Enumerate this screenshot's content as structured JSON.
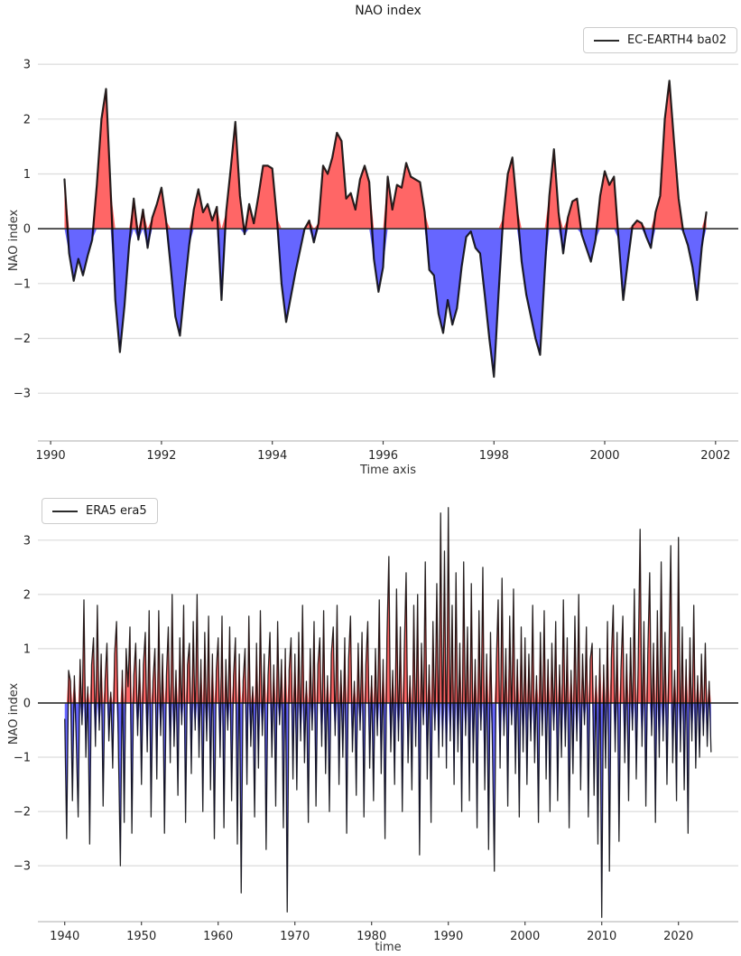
{
  "figure": {
    "background": "#ffffff",
    "grid_color": "#dcdcdc",
    "spine_color": "#c9c9c9",
    "tick_color": "#444444"
  },
  "chart_data": [
    {
      "type": "area",
      "title": "NAO index",
      "xlabel": "Time axis",
      "ylabel": "NAO index",
      "legend": {
        "label": "EC-EARTH4 ba02",
        "position": "top-right"
      },
      "grid": "horizontal",
      "xticks": [
        1990,
        1992,
        1994,
        1996,
        1998,
        2000,
        2002
      ],
      "yticks": [
        -3,
        -2,
        -1,
        0,
        1,
        2,
        3
      ],
      "xlim": [
        1989.77,
        2002.41
      ],
      "ylim": [
        -3.87,
        3.43
      ],
      "colors": {
        "positive_fill": "#ff6666",
        "negative_fill": "#6666ff",
        "line": "#000000",
        "line_opacity": 0.84,
        "zero_line": "#3d3d3d",
        "grid": "#dcdcdc"
      },
      "line_width": 2.2,
      "x_start": 1990.25,
      "x_step": 0.083333,
      "values": [
        0.9,
        -0.45,
        -0.95,
        -0.55,
        -0.85,
        -0.5,
        -0.2,
        0.8,
        2.0,
        2.55,
        0.7,
        -1.3,
        -2.25,
        -1.4,
        -0.3,
        0.55,
        -0.2,
        0.35,
        -0.35,
        0.2,
        0.45,
        0.75,
        0.15,
        -0.7,
        -1.6,
        -1.95,
        -1.1,
        -0.3,
        0.35,
        0.72,
        0.3,
        0.45,
        0.15,
        0.4,
        -1.3,
        0.3,
        1.1,
        1.95,
        0.6,
        -0.1,
        0.45,
        0.1,
        0.6,
        1.15,
        1.15,
        1.1,
        0.2,
        -1.0,
        -1.7,
        -1.25,
        -0.8,
        -0.4,
        0.0,
        0.15,
        -0.25,
        0.1,
        1.15,
        1.0,
        1.3,
        1.75,
        1.6,
        0.55,
        0.65,
        0.35,
        0.9,
        1.15,
        0.85,
        -0.55,
        -1.15,
        -0.7,
        0.95,
        0.35,
        0.8,
        0.75,
        1.2,
        0.95,
        0.9,
        0.85,
        0.3,
        -0.75,
        -0.85,
        -1.55,
        -1.9,
        -1.3,
        -1.75,
        -1.45,
        -0.7,
        -0.15,
        -0.05,
        -0.35,
        -0.45,
        -1.2,
        -2.0,
        -2.7,
        -1.2,
        0.2,
        1.0,
        1.3,
        0.4,
        -0.6,
        -1.2,
        -1.6,
        -2.0,
        -2.3,
        -0.8,
        0.6,
        1.45,
        0.3,
        -0.45,
        0.2,
        0.5,
        0.55,
        -0.1,
        -0.35,
        -0.6,
        -0.2,
        0.6,
        1.05,
        0.8,
        0.95,
        -0.2,
        -1.3,
        -0.6,
        0.05,
        0.15,
        0.1,
        -0.15,
        -0.35,
        0.3,
        0.6,
        2.0,
        2.7,
        1.6,
        0.55,
        -0.05,
        -0.3,
        -0.7,
        -1.3,
        -0.35,
        0.3
      ]
    },
    {
      "type": "area",
      "title": "",
      "xlabel": "time",
      "ylabel": "NAO index",
      "legend": {
        "label": "ERA5 era5",
        "position": "top-left"
      },
      "grid": "horizontal",
      "xticks": [
        1940,
        1950,
        1960,
        1970,
        1980,
        1990,
        2000,
        2010,
        2020
      ],
      "yticks": [
        -3,
        -2,
        -1,
        0,
        1,
        2,
        3
      ],
      "xlim": [
        1936.5,
        2027.8
      ],
      "ylim": [
        -4.03,
        3.63
      ],
      "colors": {
        "positive_fill": "#ff6666",
        "negative_fill": "#6666ff",
        "line": "#000000",
        "line_opacity": 0.84,
        "zero_line": "#3d3d3d",
        "grid": "#dcdcdc"
      },
      "line_width": 1.3,
      "x_start": 1940.0,
      "x_step": 0.25,
      "values": [
        -0.3,
        -2.5,
        0.6,
        0.4,
        -1.8,
        0.5,
        -0.7,
        -2.1,
        0.8,
        -0.4,
        1.9,
        -1.0,
        0.3,
        -2.6,
        0.7,
        1.2,
        -0.8,
        1.8,
        -0.5,
        0.9,
        -1.9,
        0.4,
        1.1,
        -0.7,
        0.2,
        -1.2,
        0.9,
        1.5,
        -0.9,
        -3.0,
        0.6,
        -2.2,
        1.0,
        0.3,
        1.4,
        -2.4,
        0.5,
        1.1,
        -0.6,
        0.8,
        -1.5,
        0.7,
        1.3,
        -0.9,
        1.7,
        -2.1,
        0.4,
        1.0,
        -1.4,
        1.7,
        -0.6,
        0.9,
        -2.4,
        0.5,
        1.4,
        -1.1,
        2.0,
        -0.8,
        0.6,
        -1.7,
        1.2,
        -0.4,
        1.8,
        -2.2,
        0.7,
        1.1,
        -1.3,
        1.5,
        -0.5,
        2.0,
        -1.0,
        0.8,
        -2.0,
        1.3,
        -0.7,
        1.6,
        -1.6,
        0.9,
        -2.5,
        0.6,
        1.2,
        -1.0,
        1.6,
        -2.3,
        0.8,
        -0.5,
        1.4,
        -1.8,
        0.5,
        1.2,
        -2.6,
        0.9,
        -3.5,
        0.4,
        1.0,
        -1.5,
        1.6,
        -0.8,
        0.3,
        -2.1,
        1.1,
        -1.2,
        1.7,
        -0.6,
        0.9,
        -2.7,
        0.5,
        1.3,
        -1.0,
        0.7,
        -1.9,
        1.5,
        -0.4,
        0.8,
        -2.3,
        1.0,
        -3.85,
        0.6,
        1.2,
        -1.4,
        0.9,
        -1.6,
        1.3,
        -0.7,
        1.8,
        -1.1,
        0.4,
        -2.2,
        1.0,
        -0.5,
        1.5,
        -1.9,
        0.7,
        1.2,
        -0.8,
        1.7,
        -1.3,
        0.5,
        -2.0,
        0.9,
        1.4,
        -0.6,
        1.8,
        -1.5,
        0.6,
        -1.0,
        1.2,
        -2.4,
        0.8,
        1.6,
        -0.9,
        0.4,
        -1.7,
        1.1,
        -0.5,
        1.3,
        -2.1,
        0.7,
        1.5,
        -1.2,
        0.5,
        -1.8,
        1.0,
        -0.6,
        1.9,
        -1.3,
        0.8,
        -2.5,
        1.2,
        2.7,
        -0.9,
        0.6,
        -1.5,
        2.1,
        -0.7,
        1.4,
        -2.0,
        0.9,
        2.4,
        -1.1,
        0.5,
        -1.6,
        1.8,
        -0.8,
        2.0,
        -2.8,
        1.1,
        -0.4,
        2.6,
        -1.4,
        0.7,
        -2.2,
        1.5,
        -0.5,
        2.2,
        -1.0,
        3.5,
        -0.8,
        2.8,
        -1.2,
        3.6,
        -0.7,
        1.8,
        -1.5,
        2.4,
        -0.9,
        1.1,
        -2.0,
        2.6,
        -0.6,
        1.4,
        -1.8,
        2.2,
        -1.1,
        0.8,
        -2.3,
        1.7,
        -0.5,
        2.5,
        -1.6,
        0.9,
        -2.7,
        1.3,
        -0.8,
        -3.1,
        0.7,
        1.9,
        -1.2,
        2.3,
        -0.6,
        1.0,
        -1.9,
        1.6,
        -0.4,
        2.1,
        -1.3,
        0.8,
        -2.1,
        1.4,
        -0.9,
        1.2,
        -1.5,
        0.9,
        -0.7,
        1.8,
        -1.1,
        0.5,
        -2.2,
        1.3,
        -0.6,
        1.7,
        -1.4,
        0.8,
        -2.0,
        1.1,
        -0.5,
        1.5,
        -1.8,
        0.7,
        -1.0,
        1.9,
        -0.8,
        1.2,
        -2.3,
        0.6,
        -1.3,
        1.6,
        -0.7,
        2.0,
        -1.6,
        0.9,
        -0.4,
        1.4,
        -2.1,
        0.8,
        1.1,
        -1.7,
        0.5,
        -2.6,
        1.0,
        -3.95,
        0.7,
        -1.2,
        1.5,
        -3.1,
        0.8,
        1.8,
        -0.9,
        1.3,
        -2.55,
        0.6,
        1.6,
        -1.1,
        0.9,
        -1.8,
        1.2,
        -0.5,
        2.1,
        -1.4,
        0.7,
        3.2,
        -0.8,
        1.5,
        -1.9,
        0.9,
        2.4,
        -0.6,
        1.1,
        -2.2,
        1.7,
        -1.0,
        2.6,
        -0.7,
        1.3,
        -1.5,
        0.8,
        2.9,
        -1.1,
        0.6,
        -1.8,
        3.05,
        -0.9,
        1.4,
        -1.6,
        0.8,
        -2.4,
        1.2,
        -0.7,
        1.8,
        -1.2,
        0.5,
        -1.0,
        0.9,
        -0.6,
        1.1,
        -0.8,
        0.4,
        -0.9
      ]
    }
  ]
}
